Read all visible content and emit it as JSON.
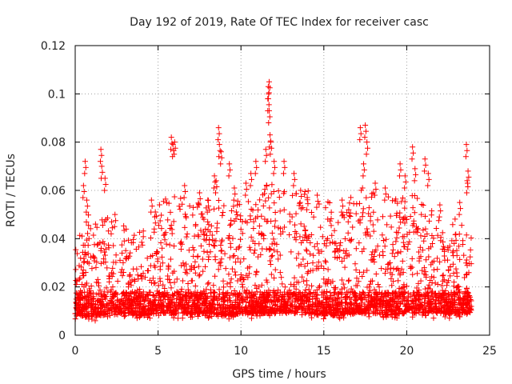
{
  "chart_data": {
    "type": "scatter",
    "title": "Day 192 of 2019, Rate Of TEC Index for receiver casc",
    "xlabel": "GPS time / hours",
    "ylabel": "ROTI / TECUs",
    "xlim": [
      0,
      25
    ],
    "ylim": [
      0,
      0.12
    ],
    "xticks": [
      0,
      5,
      10,
      15,
      20,
      25
    ],
    "xtick_labels": [
      "0",
      "5",
      "10",
      "15",
      "20",
      "25"
    ],
    "yticks": [
      0,
      0.02,
      0.04,
      0.06,
      0.08,
      0.1,
      0.12
    ],
    "ytick_labels": [
      "0",
      "0.02",
      "0.04",
      "0.06",
      "0.08",
      "0.1",
      "0.12"
    ],
    "grid": true,
    "marker": "+",
    "marker_color": "#ff0000",
    "data_range_x": [
      0,
      23.9
    ],
    "series": [
      {
        "name": "ROTI",
        "notable_points": [
          {
            "x": 0.6,
            "y": 0.072
          },
          {
            "x": 0.5,
            "y": 0.062
          },
          {
            "x": 0.7,
            "y": 0.056
          },
          {
            "x": 1.55,
            "y": 0.077
          },
          {
            "x": 1.6,
            "y": 0.07
          },
          {
            "x": 1.8,
            "y": 0.065
          },
          {
            "x": 2.4,
            "y": 0.05
          },
          {
            "x": 2.2,
            "y": 0.047
          },
          {
            "x": 4.6,
            "y": 0.056
          },
          {
            "x": 4.8,
            "y": 0.049
          },
          {
            "x": 5.8,
            "y": 0.082
          },
          {
            "x": 5.9,
            "y": 0.079
          },
          {
            "x": 6.0,
            "y": 0.08
          },
          {
            "x": 6.6,
            "y": 0.062
          },
          {
            "x": 7.5,
            "y": 0.059
          },
          {
            "x": 8.0,
            "y": 0.056
          },
          {
            "x": 8.4,
            "y": 0.066
          },
          {
            "x": 8.5,
            "y": 0.064
          },
          {
            "x": 8.65,
            "y": 0.086
          },
          {
            "x": 8.7,
            "y": 0.079
          },
          {
            "x": 8.8,
            "y": 0.076
          },
          {
            "x": 9.3,
            "y": 0.071
          },
          {
            "x": 9.6,
            "y": 0.061
          },
          {
            "x": 10.3,
            "y": 0.063
          },
          {
            "x": 10.6,
            "y": 0.067
          },
          {
            "x": 10.9,
            "y": 0.072
          },
          {
            "x": 11.5,
            "y": 0.077
          },
          {
            "x": 11.65,
            "y": 0.098
          },
          {
            "x": 11.7,
            "y": 0.093
          },
          {
            "x": 11.75,
            "y": 0.083
          },
          {
            "x": 11.8,
            "y": 0.08
          },
          {
            "x": 12.0,
            "y": 0.072
          },
          {
            "x": 12.6,
            "y": 0.072
          },
          {
            "x": 13.2,
            "y": 0.067
          },
          {
            "x": 13.6,
            "y": 0.06
          },
          {
            "x": 14.0,
            "y": 0.057
          },
          {
            "x": 14.6,
            "y": 0.058
          },
          {
            "x": 16.1,
            "y": 0.056
          },
          {
            "x": 16.5,
            "y": 0.052
          },
          {
            "x": 17.2,
            "y": 0.086
          },
          {
            "x": 17.4,
            "y": 0.071
          },
          {
            "x": 17.5,
            "y": 0.087
          },
          {
            "x": 17.6,
            "y": 0.08
          },
          {
            "x": 18.1,
            "y": 0.063
          },
          {
            "x": 18.7,
            "y": 0.061
          },
          {
            "x": 19.6,
            "y": 0.071
          },
          {
            "x": 19.9,
            "y": 0.066
          },
          {
            "x": 20.35,
            "y": 0.078
          },
          {
            "x": 20.5,
            "y": 0.069
          },
          {
            "x": 21.1,
            "y": 0.073
          },
          {
            "x": 21.3,
            "y": 0.067
          },
          {
            "x": 22.0,
            "y": 0.054
          },
          {
            "x": 23.2,
            "y": 0.055
          },
          {
            "x": 23.6,
            "y": 0.079
          },
          {
            "x": 23.7,
            "y": 0.068
          },
          {
            "x": 23.65,
            "y": 0.064
          },
          {
            "x": 11.65,
            "y": 0.103
          },
          {
            "x": 11.7,
            "y": 0.105
          }
        ],
        "hourly_envelope": {
          "x": [
            0,
            1,
            2,
            3,
            4,
            5,
            6,
            7,
            8,
            9,
            10,
            11,
            12,
            13,
            14,
            15,
            16,
            17,
            18,
            19,
            20,
            21,
            22,
            23,
            23.9
          ],
          "typical_min": [
            0.006,
            0.006,
            0.006,
            0.007,
            0.006,
            0.007,
            0.007,
            0.007,
            0.007,
            0.006,
            0.007,
            0.007,
            0.007,
            0.007,
            0.007,
            0.006,
            0.006,
            0.007,
            0.007,
            0.006,
            0.007,
            0.007,
            0.007,
            0.007,
            0.007
          ],
          "typical_max": [
            0.03,
            0.04,
            0.038,
            0.036,
            0.032,
            0.042,
            0.048,
            0.042,
            0.044,
            0.046,
            0.044,
            0.05,
            0.052,
            0.05,
            0.048,
            0.044,
            0.042,
            0.05,
            0.05,
            0.046,
            0.046,
            0.046,
            0.038,
            0.036,
            0.03
          ]
        }
      }
    ]
  }
}
